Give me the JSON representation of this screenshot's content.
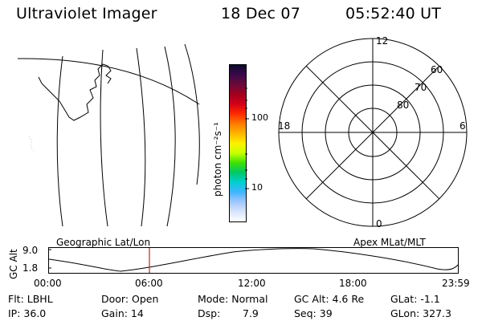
{
  "header": {
    "instrument": "Ultraviolet Imager",
    "date": "18 Dec 07",
    "time": "05:52:40 UT"
  },
  "colorbar": {
    "label": "photon cm⁻²s⁻¹",
    "tick_labels": [
      "100",
      "10"
    ],
    "colors": [
      "#0a0a2e",
      "#3a0a4a",
      "#6a0a3a",
      "#a00020",
      "#d40018",
      "#ff2a00",
      "#ff7a00",
      "#ffb400",
      "#fff000",
      "#c8ff00",
      "#40e000",
      "#00c864",
      "#00d0d0",
      "#40b4ff",
      "#a0c8ff",
      "#d8e4ff",
      "#ffffff"
    ]
  },
  "polar_plot": {
    "mlt_labels": {
      "top": "12",
      "left": "18",
      "right": "6",
      "bottom": "0"
    },
    "lat_labels": [
      "60",
      "70",
      "80"
    ]
  },
  "timeline": {
    "ylabel": "GC Alt",
    "y_ticks": [
      "9.0",
      "1.8"
    ],
    "left_title": "Geographic Lat/Lon",
    "right_title": "Apex MLat/MLT",
    "x_ticks": [
      "00:00",
      "06:00",
      "12:00",
      "18:00",
      "23:59"
    ],
    "marker_color": "#cc2222"
  },
  "status": {
    "flt": "Flt: LBHL",
    "ip": "IP: 36.0",
    "door": "Door: Open",
    "gain": "Gain: 14",
    "mode": "Mode: Normal",
    "dsp_label": "Dsp:",
    "dsp_value": "7.9",
    "gc_alt": "GC Alt: 4.6 Re",
    "seq": "Seq: 39",
    "glat": "GLat:  -1.1",
    "glon": "GLon: 327.3"
  }
}
